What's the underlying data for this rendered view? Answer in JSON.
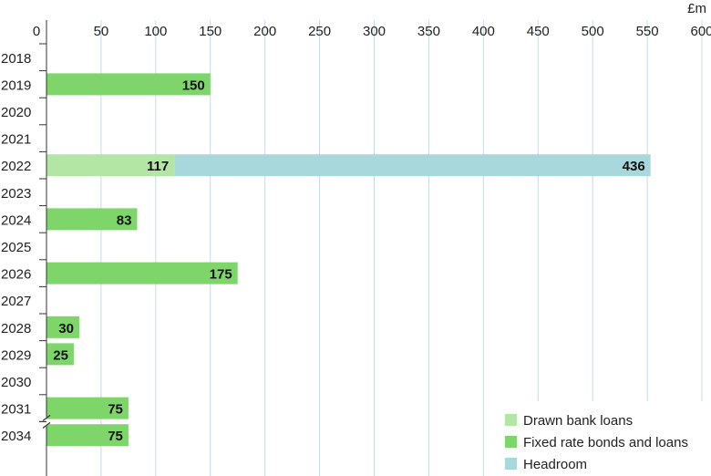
{
  "chart_data": {
    "type": "bar",
    "orientation": "horizontal",
    "stacked": true,
    "unit": "£m",
    "x_ticks": [
      "0",
      "50",
      "100",
      "150",
      "200",
      "250",
      "300",
      "350",
      "400",
      "450",
      "500",
      "550",
      "600"
    ],
    "xlim": [
      0,
      600
    ],
    "categories": [
      "2018",
      "2019",
      "2020",
      "2021",
      "2022",
      "2023",
      "2024",
      "2025",
      "2026",
      "2027",
      "2028",
      "2029",
      "2030",
      "2031",
      "2034"
    ],
    "axis_break_between": [
      "2031",
      "2034"
    ],
    "series": [
      {
        "name": "Drawn bank loans",
        "color": "#b3e6a5",
        "values": [
          0,
          0,
          0,
          0,
          117,
          0,
          0,
          0,
          0,
          0,
          0,
          0,
          0,
          0,
          0
        ],
        "labels": [
          "",
          "",
          "",
          "",
          "117",
          "",
          "",
          "",
          "",
          "",
          "",
          "",
          "",
          "",
          ""
        ]
      },
      {
        "name": "Fixed rate bonds and loans",
        "color": "#7ed66b",
        "values": [
          0,
          150,
          0,
          0,
          0,
          0,
          83,
          0,
          175,
          0,
          30,
          25,
          0,
          75,
          75
        ],
        "labels": [
          "",
          "150",
          "",
          "",
          "",
          "",
          "83",
          "",
          "175",
          "",
          "30",
          "25",
          "",
          "75",
          "75"
        ]
      },
      {
        "name": "Headroom",
        "color": "#a8d8dc",
        "values": [
          0,
          0,
          0,
          0,
          436,
          0,
          0,
          0,
          0,
          0,
          0,
          0,
          0,
          0,
          0
        ],
        "labels": [
          "",
          "",
          "",
          "",
          "436",
          "",
          "",
          "",
          "",
          "",
          "",
          "",
          "",
          "",
          ""
        ]
      }
    ],
    "grid": true,
    "legend_position": "bottom-right"
  }
}
